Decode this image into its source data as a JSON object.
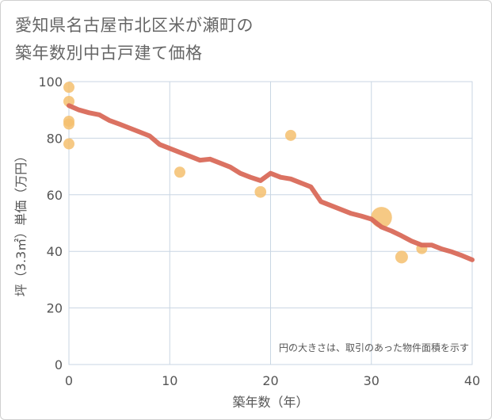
{
  "title_line1": "愛知県名古屋市北区米が瀬町の",
  "title_line2": "築年数別中古戸建て価格",
  "chart_data": {
    "type": "scatter",
    "title": "愛知県名古屋市北区米が瀬町の築年数別中古戸建て価格",
    "xlabel": "築年数（年）",
    "ylabel": "坪（3.3㎡）単価（万円）",
    "xlim": [
      0,
      40
    ],
    "ylim": [
      0,
      100
    ],
    "xticks": [
      0,
      10,
      20,
      30,
      40
    ],
    "yticks": [
      0,
      20,
      40,
      60,
      80,
      100
    ],
    "grid": true,
    "annotation": "円の大きさは、取引のあった物件面積を示す",
    "points": [
      {
        "x": 0,
        "y": 98,
        "size": 1
      },
      {
        "x": 0,
        "y": 93,
        "size": 1
      },
      {
        "x": 0,
        "y": 86,
        "size": 1
      },
      {
        "x": 0,
        "y": 85,
        "size": 1
      },
      {
        "x": 0,
        "y": 78,
        "size": 1
      },
      {
        "x": 11,
        "y": 68,
        "size": 1
      },
      {
        "x": 19,
        "y": 61,
        "size": 1.1
      },
      {
        "x": 22,
        "y": 81,
        "size": 1
      },
      {
        "x": 31,
        "y": 52,
        "size": 3.6
      },
      {
        "x": 33,
        "y": 38,
        "size": 1.3
      },
      {
        "x": 35,
        "y": 41,
        "size": 1
      }
    ],
    "trend": {
      "x": [
        0,
        1,
        2,
        3,
        4,
        5,
        6,
        7,
        8,
        9,
        10,
        11,
        12,
        13,
        14,
        15,
        16,
        17,
        18,
        19,
        20,
        21,
        22,
        23,
        24,
        25,
        26,
        27,
        28,
        29,
        30,
        31,
        32,
        33,
        34,
        35,
        36,
        37,
        38,
        39,
        40
      ],
      "y": [
        91.5,
        90,
        89,
        88.3,
        86.3,
        85,
        83.6,
        82.2,
        80.8,
        77.8,
        76.4,
        75,
        73.6,
        72.2,
        72.6,
        71.2,
        69.8,
        67.6,
        66.2,
        65,
        67.6,
        66.2,
        65.6,
        64.2,
        62.8,
        57.6,
        56.2,
        54.8,
        53.4,
        52.5,
        51.4,
        48.6,
        47.2,
        45.5,
        43.6,
        42.2,
        42.2,
        40.8,
        39.8,
        38.5,
        37
      ]
    },
    "colors": {
      "points": "#f5c06f",
      "trend": "#d96a5a",
      "grid": "#c9d6e3",
      "text": "#555555"
    }
  }
}
